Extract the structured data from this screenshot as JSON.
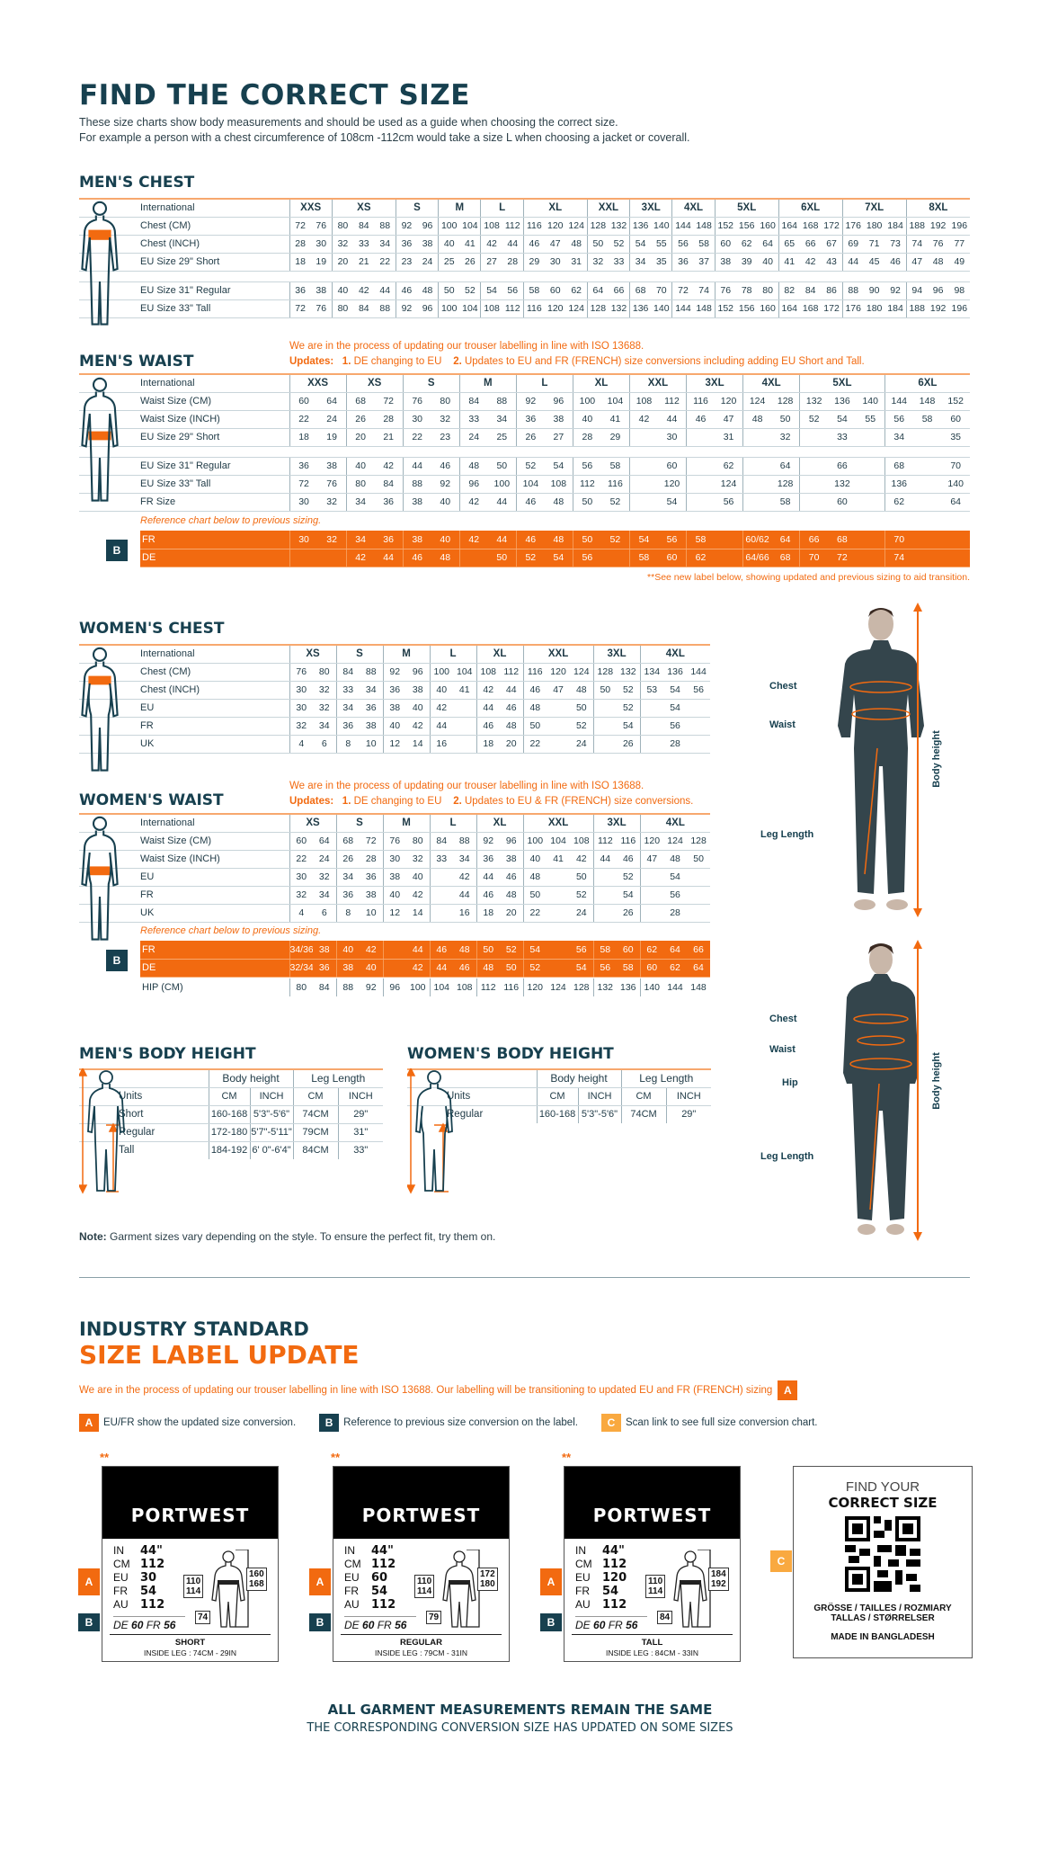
{
  "colors": {
    "navy": "#17404f",
    "orange": "#f26a10",
    "light_orange": "#f9a940"
  },
  "header": {
    "title": "FIND THE CORRECT SIZE",
    "intro": [
      "These size charts show body measurements and should be used as a guide when choosing the correct size.",
      "For example a person with a chest circumference of 108cm -112cm would take a size L when choosing a jacket or coverall."
    ]
  },
  "mens_chest": {
    "title": "MEN'S CHEST",
    "header_label": "International",
    "sizes": [
      "XXS",
      "XS",
      "S",
      "M",
      "L",
      "XL",
      "XXL",
      "3XL",
      "4XL",
      "5XL",
      "6XL",
      "7XL",
      "8XL"
    ],
    "spans": [
      2,
      3,
      2,
      2,
      2,
      3,
      2,
      2,
      2,
      3,
      3,
      3,
      3
    ],
    "spacer_after": 2,
    "rows": [
      {
        "label": "Chest (CM)",
        "values": [
          "72",
          "76",
          "80",
          "84",
          "88",
          "92",
          "96",
          "100",
          "104",
          "108",
          "112",
          "116",
          "120",
          "124",
          "128",
          "132",
          "136",
          "140",
          "144",
          "148",
          "152",
          "156",
          "160",
          "164",
          "168",
          "172",
          "176",
          "180",
          "184",
          "188",
          "192",
          "196"
        ]
      },
      {
        "label": "Chest (INCH)",
        "values": [
          "28",
          "30",
          "32",
          "33",
          "34",
          "36",
          "38",
          "40",
          "41",
          "42",
          "44",
          "46",
          "47",
          "48",
          "50",
          "52",
          "54",
          "55",
          "56",
          "58",
          "60",
          "62",
          "64",
          "65",
          "66",
          "67",
          "69",
          "71",
          "73",
          "74",
          "76",
          "77"
        ]
      },
      {
        "label": "EU Size 29\" Short",
        "values": [
          "18",
          "19",
          "20",
          "21",
          "22",
          "23",
          "24",
          "25",
          "26",
          "27",
          "28",
          "29",
          "30",
          "31",
          "32",
          "33",
          "34",
          "35",
          "36",
          "37",
          "38",
          "39",
          "40",
          "41",
          "42",
          "43",
          "44",
          "45",
          "46",
          "47",
          "48",
          "49"
        ]
      },
      {
        "label": "EU Size 31\" Regular",
        "values": [
          "36",
          "38",
          "40",
          "42",
          "44",
          "46",
          "48",
          "50",
          "52",
          "54",
          "56",
          "58",
          "60",
          "62",
          "64",
          "66",
          "68",
          "70",
          "72",
          "74",
          "76",
          "78",
          "80",
          "82",
          "84",
          "86",
          "88",
          "90",
          "92",
          "94",
          "96",
          "98"
        ]
      },
      {
        "label": "EU Size 33\" Tall",
        "values": [
          "72",
          "76",
          "80",
          "84",
          "88",
          "92",
          "96",
          "100",
          "104",
          "108",
          "112",
          "116",
          "120",
          "124",
          "128",
          "132",
          "136",
          "140",
          "144",
          "148",
          "152",
          "156",
          "160",
          "164",
          "168",
          "172",
          "176",
          "180",
          "184",
          "188",
          "192",
          "196"
        ]
      }
    ]
  },
  "mens_waist": {
    "title": "MEN'S WAIST",
    "notice": "We are in the process of updating our trouser labelling in line with ISO 13688.",
    "updates_label": "Updates:",
    "update1_num": "1.",
    "update1": "DE changing to EU",
    "update2_num": "2.",
    "update2": "Updates to EU and FR (FRENCH) size conversions including adding EU Short and Tall.",
    "header_label": "International",
    "sizes": [
      "XXS",
      "XS",
      "S",
      "M",
      "L",
      "XL",
      "XXL",
      "3XL",
      "4XL",
      "5XL",
      "6XL"
    ],
    "spans": [
      2,
      2,
      2,
      2,
      2,
      2,
      2,
      2,
      2,
      3,
      3
    ],
    "spacer_after": 2,
    "rows": [
      {
        "label": "Waist Size (CM)",
        "values": [
          "60",
          "64",
          "68",
          "72",
          "76",
          "80",
          "84",
          "88",
          "92",
          "96",
          "100",
          "104",
          "108",
          "112",
          "116",
          "120",
          "124",
          "128",
          "132",
          "136",
          "140",
          "144",
          "148",
          "152"
        ]
      },
      {
        "label": "Waist Size (INCH)",
        "values": [
          "22",
          "24",
          "26",
          "28",
          "30",
          "32",
          "33",
          "34",
          "36",
          "38",
          "40",
          "41",
          "42",
          "44",
          "46",
          "47",
          "48",
          "50",
          "52",
          "54",
          "55",
          "56",
          "58",
          "60"
        ]
      },
      {
        "label": "EU Size 29\" Short",
        "values": [
          "18",
          "19",
          "20",
          "21",
          "22",
          "23",
          "24",
          "25",
          "26",
          "27",
          "28",
          "29",
          "",
          "30",
          "",
          "31",
          "",
          "32",
          "",
          "33",
          "",
          "34",
          "",
          "35"
        ]
      },
      {
        "label": "EU Size 31\" Regular",
        "values": [
          "36",
          "38",
          "40",
          "42",
          "44",
          "46",
          "48",
          "50",
          "52",
          "54",
          "56",
          "58",
          "",
          "60",
          "",
          "62",
          "",
          "64",
          "",
          "66",
          "",
          "68",
          "",
          "70"
        ]
      },
      {
        "label": "EU Size 33\" Tall",
        "values": [
          "72",
          "76",
          "80",
          "84",
          "88",
          "92",
          "96",
          "100",
          "104",
          "108",
          "112",
          "116",
          "",
          "120",
          "",
          "124",
          "",
          "128",
          "",
          "132",
          "",
          "136",
          "",
          "140"
        ]
      },
      {
        "label": "FR Size",
        "values": [
          "30",
          "32",
          "34",
          "36",
          "38",
          "40",
          "42",
          "44",
          "46",
          "48",
          "50",
          "52",
          "",
          "54",
          "",
          "56",
          "",
          "58",
          "",
          "60",
          "",
          "62",
          "",
          "64"
        ]
      }
    ],
    "reference_note": "Reference chart below to previous sizing.",
    "badge": "B",
    "previous": [
      {
        "label": "FR",
        "values": [
          "30",
          "32",
          "34",
          "36",
          "38",
          "40",
          "42",
          "44",
          "46",
          "48",
          "50",
          "52",
          "54",
          "56",
          "58",
          "",
          "60/62",
          "64",
          "66",
          "68",
          "",
          "70",
          "",
          ""
        ]
      },
      {
        "label": "DE",
        "values": [
          "",
          "",
          "42",
          "44",
          "46",
          "48",
          "",
          "50",
          "52",
          "54",
          "56",
          "",
          "58",
          "60",
          "62",
          "",
          "64/66",
          "68",
          "70",
          "72",
          "",
          "74",
          "",
          ""
        ]
      }
    ],
    "footnote": "**See new label below, showing updated and previous sizing to aid transition."
  },
  "womens_chest": {
    "title": "WOMEN'S CHEST",
    "header_label": "International",
    "sizes": [
      "XS",
      "S",
      "M",
      "L",
      "XL",
      "XXL",
      "3XL",
      "4XL"
    ],
    "spans": [
      2,
      2,
      2,
      2,
      2,
      3,
      2,
      3
    ],
    "spacer_after": -1,
    "rows": [
      {
        "label": "Chest (CM)",
        "values": [
          "76",
          "80",
          "84",
          "88",
          "92",
          "96",
          "100",
          "104",
          "108",
          "112",
          "116",
          "120",
          "124",
          "128",
          "132",
          "134",
          "136",
          "144"
        ]
      },
      {
        "label": "Chest (INCH)",
        "values": [
          "30",
          "32",
          "33",
          "34",
          "36",
          "38",
          "40",
          "41",
          "42",
          "44",
          "46",
          "47",
          "48",
          "50",
          "52",
          "53",
          "54",
          "56"
        ]
      },
      {
        "label": "EU",
        "values": [
          "30",
          "32",
          "34",
          "36",
          "38",
          "40",
          "42",
          "",
          "44",
          "46",
          "48",
          "",
          "50",
          "",
          "52",
          "",
          "54",
          ""
        ]
      },
      {
        "label": "FR",
        "values": [
          "32",
          "34",
          "36",
          "38",
          "40",
          "42",
          "44",
          "",
          "46",
          "48",
          "50",
          "",
          "52",
          "",
          "54",
          "",
          "56",
          ""
        ]
      },
      {
        "label": "UK",
        "values": [
          "4",
          "6",
          "8",
          "10",
          "12",
          "14",
          "16",
          "",
          "18",
          "20",
          "22",
          "",
          "24",
          "",
          "26",
          "",
          "28",
          ""
        ]
      }
    ]
  },
  "womens_waist": {
    "title": "WOMEN'S WAIST",
    "notice": "We are in the process of updating our trouser labelling in line with ISO 13688.",
    "updates_label": "Updates:",
    "update1_num": "1.",
    "update1": "DE changing to EU",
    "update2_num": "2.",
    "update2": "Updates to EU & FR (FRENCH) size conversions.",
    "header_label": "International",
    "sizes": [
      "XS",
      "S",
      "M",
      "L",
      "XL",
      "XXL",
      "3XL",
      "4XL"
    ],
    "spans": [
      2,
      2,
      2,
      2,
      2,
      3,
      2,
      3
    ],
    "spacer_after": -1,
    "rows": [
      {
        "label": "Waist Size (CM)",
        "values": [
          "60",
          "64",
          "68",
          "72",
          "76",
          "80",
          "84",
          "88",
          "92",
          "96",
          "100",
          "104",
          "108",
          "112",
          "116",
          "120",
          "124",
          "128"
        ]
      },
      {
        "label": "Waist Size (INCH)",
        "values": [
          "22",
          "24",
          "26",
          "28",
          "30",
          "32",
          "33",
          "34",
          "36",
          "38",
          "40",
          "41",
          "42",
          "44",
          "46",
          "47",
          "48",
          "50"
        ]
      },
      {
        "label": "EU",
        "values": [
          "30",
          "32",
          "34",
          "36",
          "38",
          "40",
          "",
          "42",
          "44",
          "46",
          "48",
          "",
          "50",
          "",
          "52",
          "",
          "54",
          ""
        ]
      },
      {
        "label": "FR",
        "values": [
          "32",
          "34",
          "36",
          "38",
          "40",
          "42",
          "",
          "44",
          "46",
          "48",
          "50",
          "",
          "52",
          "",
          "54",
          "",
          "56",
          ""
        ]
      },
      {
        "label": "UK",
        "values": [
          "4",
          "6",
          "8",
          "10",
          "12",
          "14",
          "",
          "16",
          "18",
          "20",
          "22",
          "",
          "24",
          "",
          "26",
          "",
          "28",
          ""
        ]
      }
    ],
    "reference_note": "Reference chart below to previous sizing.",
    "badge": "B",
    "previous": [
      {
        "label": "FR",
        "values": [
          "34/36",
          "38",
          "40",
          "42",
          "",
          "44",
          "46",
          "48",
          "50",
          "52",
          "54",
          "",
          "56",
          "58",
          "60",
          "62",
          "64",
          "66"
        ]
      },
      {
        "label": "DE",
        "values": [
          "32/34",
          "36",
          "38",
          "40",
          "",
          "42",
          "44",
          "46",
          "48",
          "50",
          "52",
          "",
          "54",
          "56",
          "58",
          "60",
          "62",
          "64"
        ]
      }
    ],
    "hip": {
      "label": "HIP (CM)",
      "values": [
        "80",
        "84",
        "88",
        "92",
        "96",
        "100",
        "104",
        "108",
        "112",
        "116",
        "120",
        "124",
        "128",
        "132",
        "136",
        "140",
        "144",
        "148"
      ]
    }
  },
  "mens_height": {
    "title": "MEN'S BODY HEIGHT",
    "group_headers": [
      "Body height",
      "Leg Length"
    ],
    "units_label": "Units",
    "units": [
      "CM",
      "INCH",
      "CM",
      "INCH"
    ],
    "rows": [
      {
        "label": "Short",
        "values": [
          "160-168",
          "5'3\"-5'6\"",
          "74CM",
          "29\""
        ]
      },
      {
        "label": "Regular",
        "values": [
          "172-180",
          "5'7\"-5'11\"",
          "79CM",
          "31\""
        ]
      },
      {
        "label": "Tall",
        "values": [
          "184-192",
          "6' 0\"-6'4\"",
          "84CM",
          "33\""
        ]
      }
    ]
  },
  "womens_height": {
    "title": "WOMEN'S BODY HEIGHT",
    "group_headers": [
      "Body height",
      "Leg Length"
    ],
    "units_label": "Units",
    "units": [
      "CM",
      "INCH",
      "CM",
      "INCH"
    ],
    "rows": [
      {
        "label": "Regular",
        "values": [
          "160-168",
          "5'3\"-5'6\"",
          "74CM",
          "29\""
        ]
      }
    ]
  },
  "photos": {
    "male": {
      "chest": "Chest",
      "waist": "Waist",
      "leg": "Leg Length",
      "body_height": "Body height"
    },
    "female": {
      "chest": "Chest",
      "waist": "Waist",
      "hip": "Hip",
      "leg": "Leg Length",
      "body_height": "Body height"
    }
  },
  "note": {
    "bold": "Note:",
    "text": " Garment sizes vary depending on the style. To ensure the perfect fit, try them on."
  },
  "label_update": {
    "title1": "INDUSTRY STANDARD",
    "title2": "SIZE LABEL UPDATE",
    "intro": "We are in the process of updating our trouser labelling in line with ISO 13688. Our labelling will be transitioning to updated EU and FR (FRENCH) sizing",
    "intro_badge": "A",
    "legend": [
      {
        "badge": "A",
        "text": "EU/FR show the updated size conversion."
      },
      {
        "badge": "B",
        "text": "Reference to previous size conversion on the label."
      },
      {
        "badge": "C",
        "text": "Scan link to see full size conversion chart."
      }
    ]
  },
  "labels": [
    {
      "asterisks": "**",
      "brand": "PORTWEST",
      "rows": [
        [
          "IN",
          "44\""
        ],
        [
          "CM",
          "112"
        ],
        [
          "EU",
          "30"
        ],
        [
          "FR",
          "54"
        ],
        [
          "AU",
          "112"
        ]
      ],
      "prev": [
        "DE",
        "60",
        "FR",
        "56"
      ],
      "waist": "110\n114",
      "height": "160\n168",
      "leg": "74",
      "fit": "SHORT",
      "inside_leg": "INSIDE LEG : 74CM - 29IN",
      "badge_a": "A",
      "badge_b": "B"
    },
    {
      "asterisks": "**",
      "brand": "PORTWEST",
      "rows": [
        [
          "IN",
          "44\""
        ],
        [
          "CM",
          "112"
        ],
        [
          "EU",
          "60"
        ],
        [
          "FR",
          "54"
        ],
        [
          "AU",
          "112"
        ]
      ],
      "prev": [
        "DE",
        "60",
        "FR",
        "56"
      ],
      "waist": "110\n114",
      "height": "172\n180",
      "leg": "79",
      "fit": "REGULAR",
      "inside_leg": "INSIDE LEG : 79CM - 31IN",
      "badge_a": "A",
      "badge_b": "B"
    },
    {
      "asterisks": "**",
      "brand": "PORTWEST",
      "rows": [
        [
          "IN",
          "44\""
        ],
        [
          "CM",
          "112"
        ],
        [
          "EU",
          "120"
        ],
        [
          "FR",
          "54"
        ],
        [
          "AU",
          "112"
        ]
      ],
      "prev": [
        "DE",
        "60",
        "FR",
        "56"
      ],
      "waist": "110\n114",
      "height": "184\n192",
      "leg": "84",
      "fit": "TALL",
      "inside_leg": "INSIDE LEG : 84CM - 33IN",
      "badge_a": "A",
      "badge_b": "B"
    }
  ],
  "qr": {
    "line1": "FIND YOUR",
    "line2": "CORRECT SIZE",
    "languages1": "GRÖSSE / TAILLES / ROZMIARY",
    "languages2": "TALLAS / STØRRELSER",
    "made_in": "MADE IN BANGLADESH",
    "badge": "C"
  },
  "footer": {
    "line1": "ALL GARMENT MEASUREMENTS REMAIN THE SAME",
    "line2": "THE CORRESPONDING CONVERSION SIZE HAS UPDATED ON SOME SIZES"
  }
}
